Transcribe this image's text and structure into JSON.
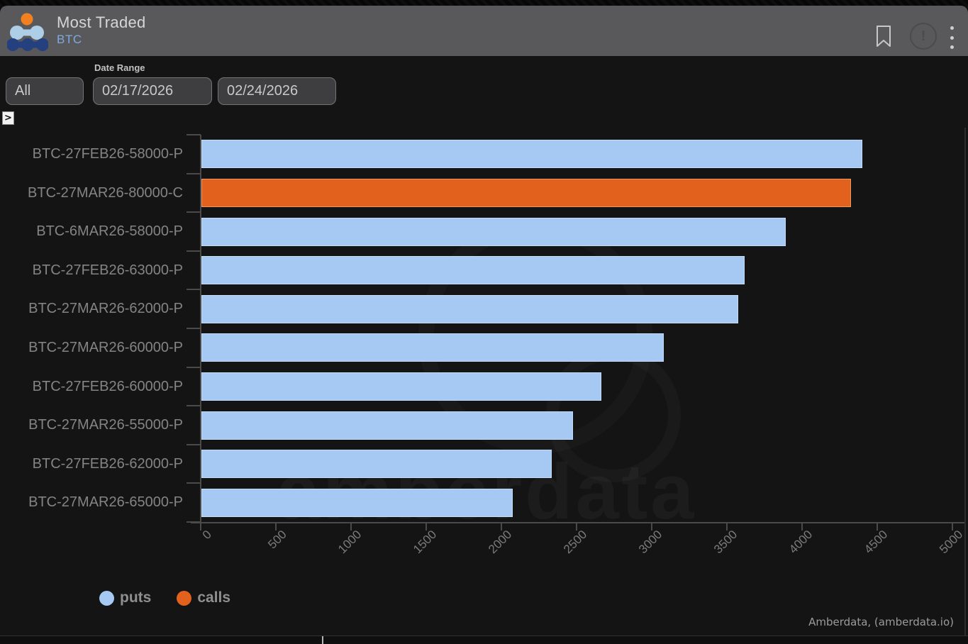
{
  "header": {
    "title": "Most Traded",
    "subtitle": "BTC",
    "icons": [
      "bookmark-icon",
      "info-icon",
      "kebab-menu-icon"
    ],
    "info_glyph": "!"
  },
  "filters": {
    "asset_select_value": "All",
    "date_range_label": "Date Range",
    "date_from": "02/17/2026",
    "date_to": "02/24/2026",
    "expander_glyph": ">"
  },
  "chart_data": {
    "type": "bar",
    "orientation": "horizontal",
    "title": "Most Traded",
    "categories": [
      "BTC-27FEB26-58000-P",
      "BTC-27MAR26-80000-C",
      "BTC-6MAR26-58000-P",
      "BTC-27FEB26-63000-P",
      "BTC-27MAR26-62000-P",
      "BTC-27MAR26-60000-P",
      "BTC-27FEB26-60000-P",
      "BTC-27MAR26-55000-P",
      "BTC-27FEB26-62000-P",
      "BTC-27MAR26-65000-P"
    ],
    "values": [
      4395,
      4320,
      3885,
      3615,
      3570,
      3075,
      2660,
      2470,
      2330,
      2070
    ],
    "option_types": [
      "call_or_put_from_suffix",
      "put",
      "call",
      "put",
      "put",
      "put",
      "put",
      "put",
      "put",
      "put",
      "put"
    ],
    "types_by_bar": [
      "put",
      "call",
      "put",
      "put",
      "put",
      "put",
      "put",
      "put",
      "put",
      "put"
    ],
    "xlim": [
      0,
      5000
    ],
    "xticks": [
      0,
      500,
      1000,
      1500,
      2000,
      2500,
      3000,
      3500,
      4000,
      4500,
      5000
    ],
    "grid": false,
    "legend": {
      "position": "bottom-left",
      "entries": [
        {
          "label": "puts",
          "color": "#a6c9f4",
          "type": "put"
        },
        {
          "label": "calls",
          "color": "#e2621d",
          "type": "call"
        }
      ]
    }
  },
  "colors": {
    "puts_blue": "#a6c9f4",
    "calls_orange": "#e2621d",
    "header_bg": "#59595b",
    "panel_bg": "#141414",
    "axis_gray": "#4a4a4a",
    "label_gray": "#848484"
  },
  "watermark": {
    "text": "amberdata"
  },
  "footer": {
    "attribution": "Amberdata, (amberdata.io)"
  }
}
